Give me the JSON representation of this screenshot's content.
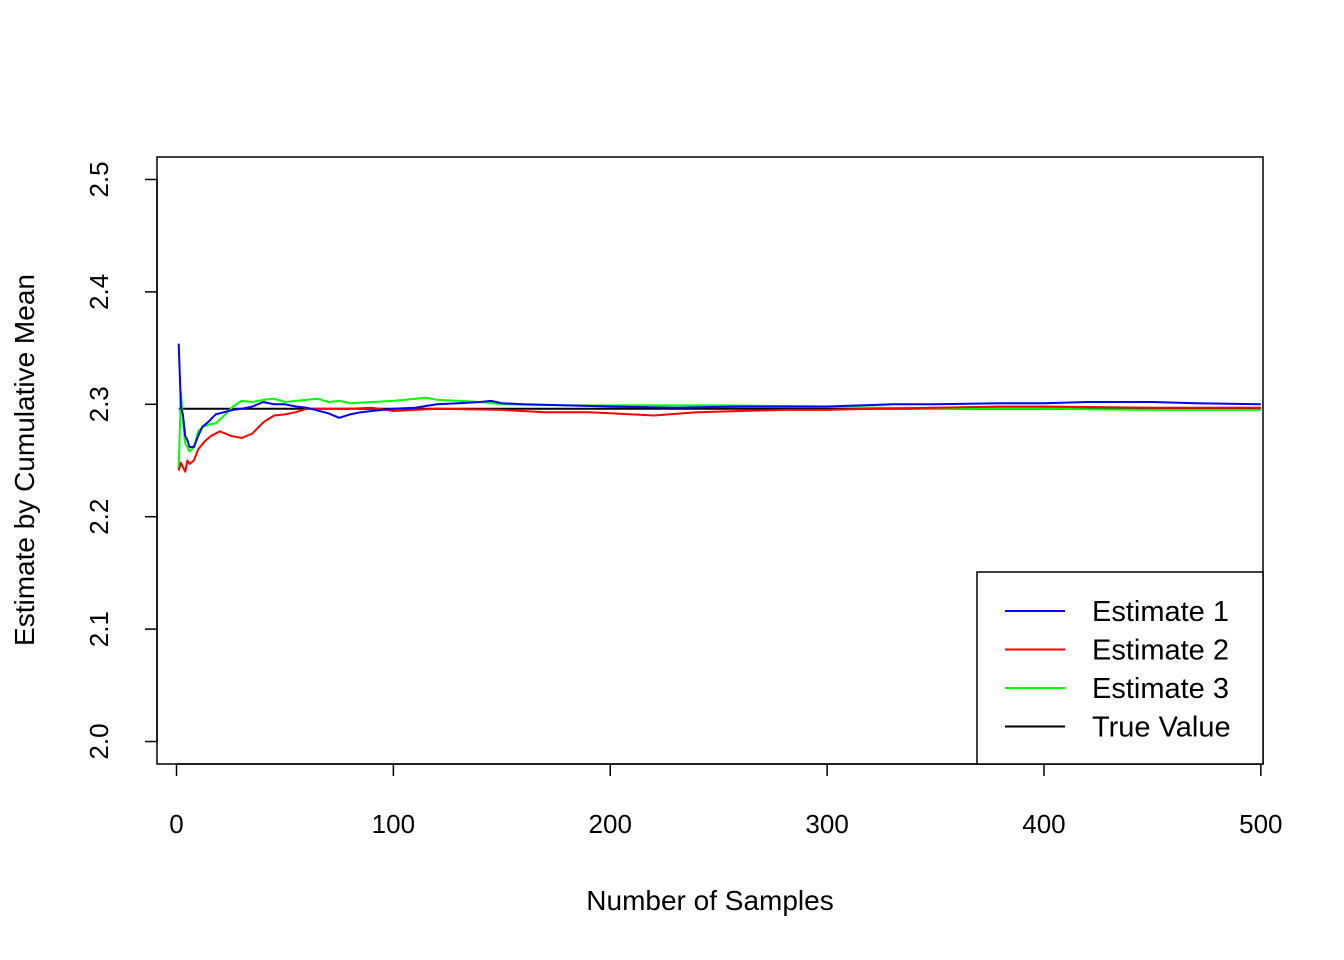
{
  "chart_data": {
    "type": "line",
    "title": "",
    "xlabel": "Number of Samples",
    "ylabel": "Estimate by Cumulative Mean",
    "xlim": [
      -9,
      501
    ],
    "ylim": [
      1.98,
      2.52
    ],
    "xticks": [
      0,
      100,
      200,
      300,
      400,
      500
    ],
    "xtick_labels": [
      "0",
      "100",
      "200",
      "300",
      "400",
      "500"
    ],
    "yticks": [
      2.0,
      2.1,
      2.2,
      2.3,
      2.4,
      2.5
    ],
    "ytick_labels": [
      "2.0",
      "2.1",
      "2.2",
      "2.3",
      "2.4",
      "2.5"
    ],
    "grid": false,
    "legend_position": "bottom-right",
    "series": [
      {
        "name": "Estimate 1",
        "color": "#0000ff",
        "x": [
          1,
          2,
          3,
          4,
          5,
          6,
          8,
          10,
          12,
          15,
          18,
          22,
          26,
          30,
          35,
          40,
          45,
          50,
          55,
          60,
          70,
          75,
          80,
          85,
          90,
          100,
          110,
          120,
          130,
          140,
          145,
          150,
          160,
          180,
          200,
          230,
          260,
          300,
          330,
          350,
          380,
          400,
          420,
          450,
          470,
          500
        ],
        "y": [
          2.354,
          2.298,
          2.29,
          2.272,
          2.268,
          2.262,
          2.262,
          2.272,
          2.28,
          2.285,
          2.291,
          2.293,
          2.295,
          2.296,
          2.298,
          2.302,
          2.3,
          2.3,
          2.298,
          2.297,
          2.292,
          2.288,
          2.291,
          2.293,
          2.294,
          2.296,
          2.297,
          2.3,
          2.301,
          2.302,
          2.303,
          2.301,
          2.3,
          2.299,
          2.298,
          2.297,
          2.298,
          2.298,
          2.3,
          2.3,
          2.301,
          2.301,
          2.302,
          2.302,
          2.301,
          2.3
        ]
      },
      {
        "name": "Estimate 2",
        "color": "#ff0000",
        "x": [
          1,
          2,
          3,
          4,
          5,
          6,
          8,
          10,
          13,
          16,
          20,
          25,
          30,
          35,
          40,
          45,
          50,
          55,
          60,
          70,
          80,
          90,
          100,
          120,
          150,
          170,
          190,
          200,
          220,
          240,
          260,
          280,
          300,
          320,
          350,
          380,
          400,
          450,
          500
        ],
        "y": [
          2.241,
          2.248,
          2.244,
          2.24,
          2.25,
          2.247,
          2.25,
          2.26,
          2.267,
          2.272,
          2.276,
          2.272,
          2.27,
          2.274,
          2.284,
          2.29,
          2.291,
          2.293,
          2.296,
          2.296,
          2.296,
          2.297,
          2.294,
          2.296,
          2.295,
          2.293,
          2.293,
          2.292,
          2.29,
          2.293,
          2.294,
          2.295,
          2.295,
          2.296,
          2.297,
          2.298,
          2.298,
          2.297,
          2.297
        ]
      },
      {
        "name": "Estimate 3",
        "color": "#00ff00",
        "x": [
          1,
          2,
          3,
          4,
          5,
          6,
          8,
          10,
          12,
          15,
          18,
          22,
          26,
          30,
          35,
          40,
          45,
          50,
          55,
          60,
          65,
          70,
          75,
          80,
          90,
          100,
          110,
          115,
          120,
          130,
          140,
          150,
          180,
          200,
          250,
          300,
          350,
          400,
          450,
          500
        ],
        "y": [
          2.243,
          2.311,
          2.285,
          2.265,
          2.262,
          2.258,
          2.262,
          2.276,
          2.28,
          2.282,
          2.283,
          2.29,
          2.298,
          2.303,
          2.302,
          2.304,
          2.305,
          2.302,
          2.303,
          2.304,
          2.305,
          2.302,
          2.303,
          2.301,
          2.302,
          2.303,
          2.305,
          2.306,
          2.304,
          2.303,
          2.302,
          2.3,
          2.299,
          2.299,
          2.299,
          2.298,
          2.296,
          2.296,
          2.295,
          2.295
        ]
      },
      {
        "name": "True Value",
        "color": "#000000",
        "x": [
          1,
          500
        ],
        "y": [
          2.296,
          2.296
        ]
      }
    ]
  }
}
